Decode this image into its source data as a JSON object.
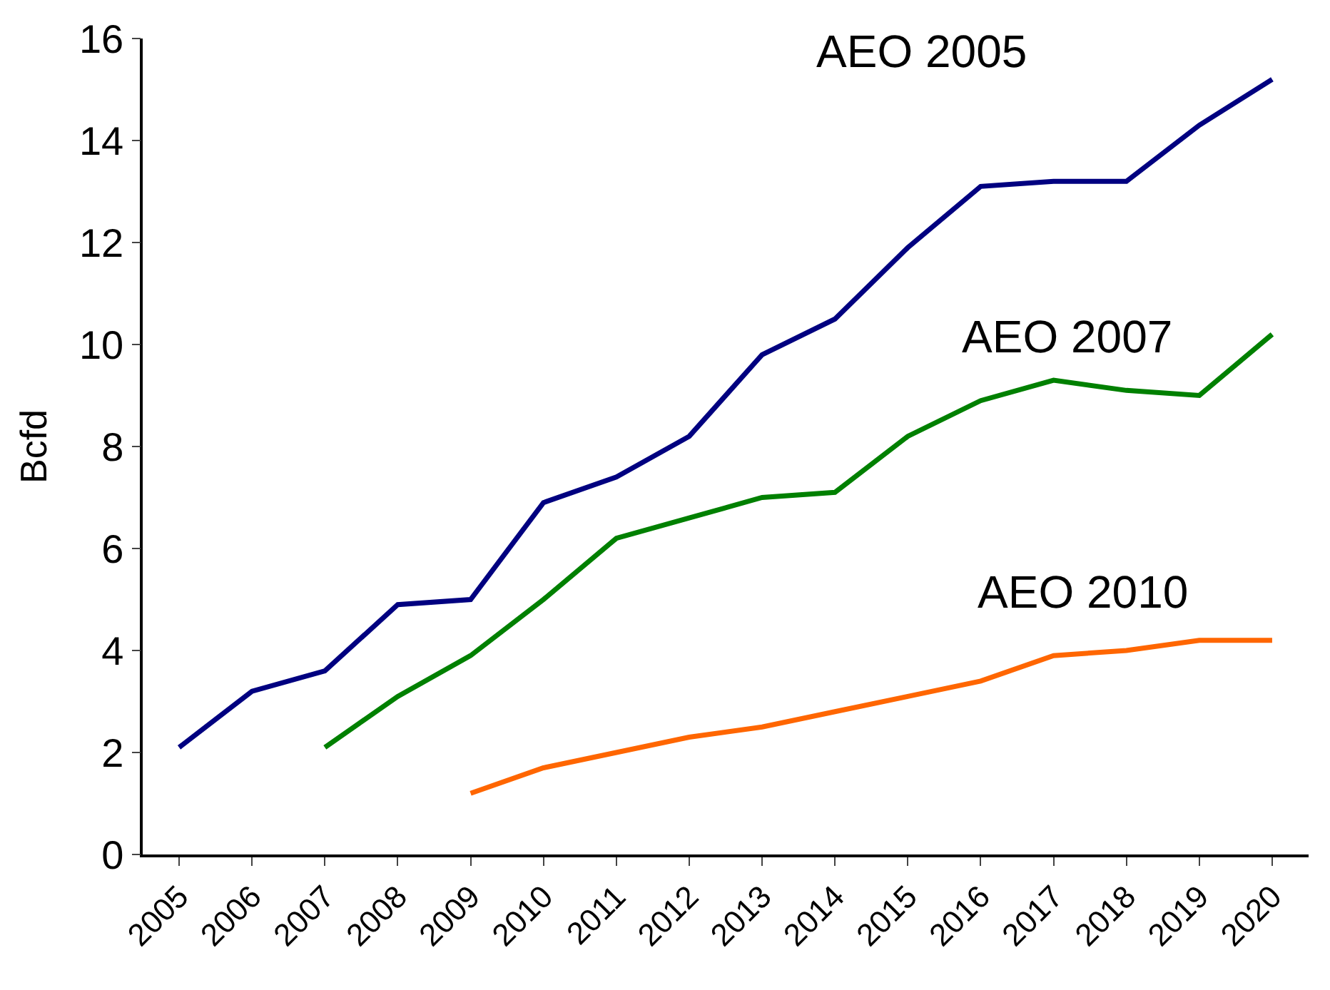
{
  "chart_data": {
    "type": "line",
    "ylabel": "Bcfd",
    "categories": [
      "2005",
      "2006",
      "2007",
      "2008",
      "2009",
      "2010",
      "2011",
      "2012",
      "2013",
      "2014",
      "2015",
      "2016",
      "2017",
      "2018",
      "2019",
      "2020"
    ],
    "series": [
      {
        "name": "AEO 2005",
        "color": "#000080",
        "values": [
          2.1,
          3.2,
          3.6,
          4.9,
          5.0,
          6.9,
          7.4,
          8.2,
          9.8,
          10.5,
          11.9,
          13.1,
          13.2,
          13.2,
          14.3,
          15.2
        ]
      },
      {
        "name": "AEO 2007",
        "color": "#008000",
        "values": [
          null,
          null,
          2.1,
          3.1,
          3.9,
          5.0,
          6.2,
          6.6,
          7.0,
          7.1,
          8.2,
          8.9,
          9.3,
          9.1,
          9.0,
          10.2
        ]
      },
      {
        "name": "AEO 2010",
        "color": "#ff6600",
        "values": [
          null,
          null,
          null,
          null,
          1.2,
          1.7,
          2.0,
          2.3,
          2.5,
          2.8,
          3.1,
          3.4,
          3.9,
          4.0,
          4.2,
          4.2
        ]
      }
    ],
    "ylim": [
      0,
      16
    ],
    "yticks": [
      0,
      2,
      4,
      6,
      8,
      10,
      12,
      14,
      16
    ],
    "legend": false,
    "marker": "none",
    "line_style": "solid"
  }
}
